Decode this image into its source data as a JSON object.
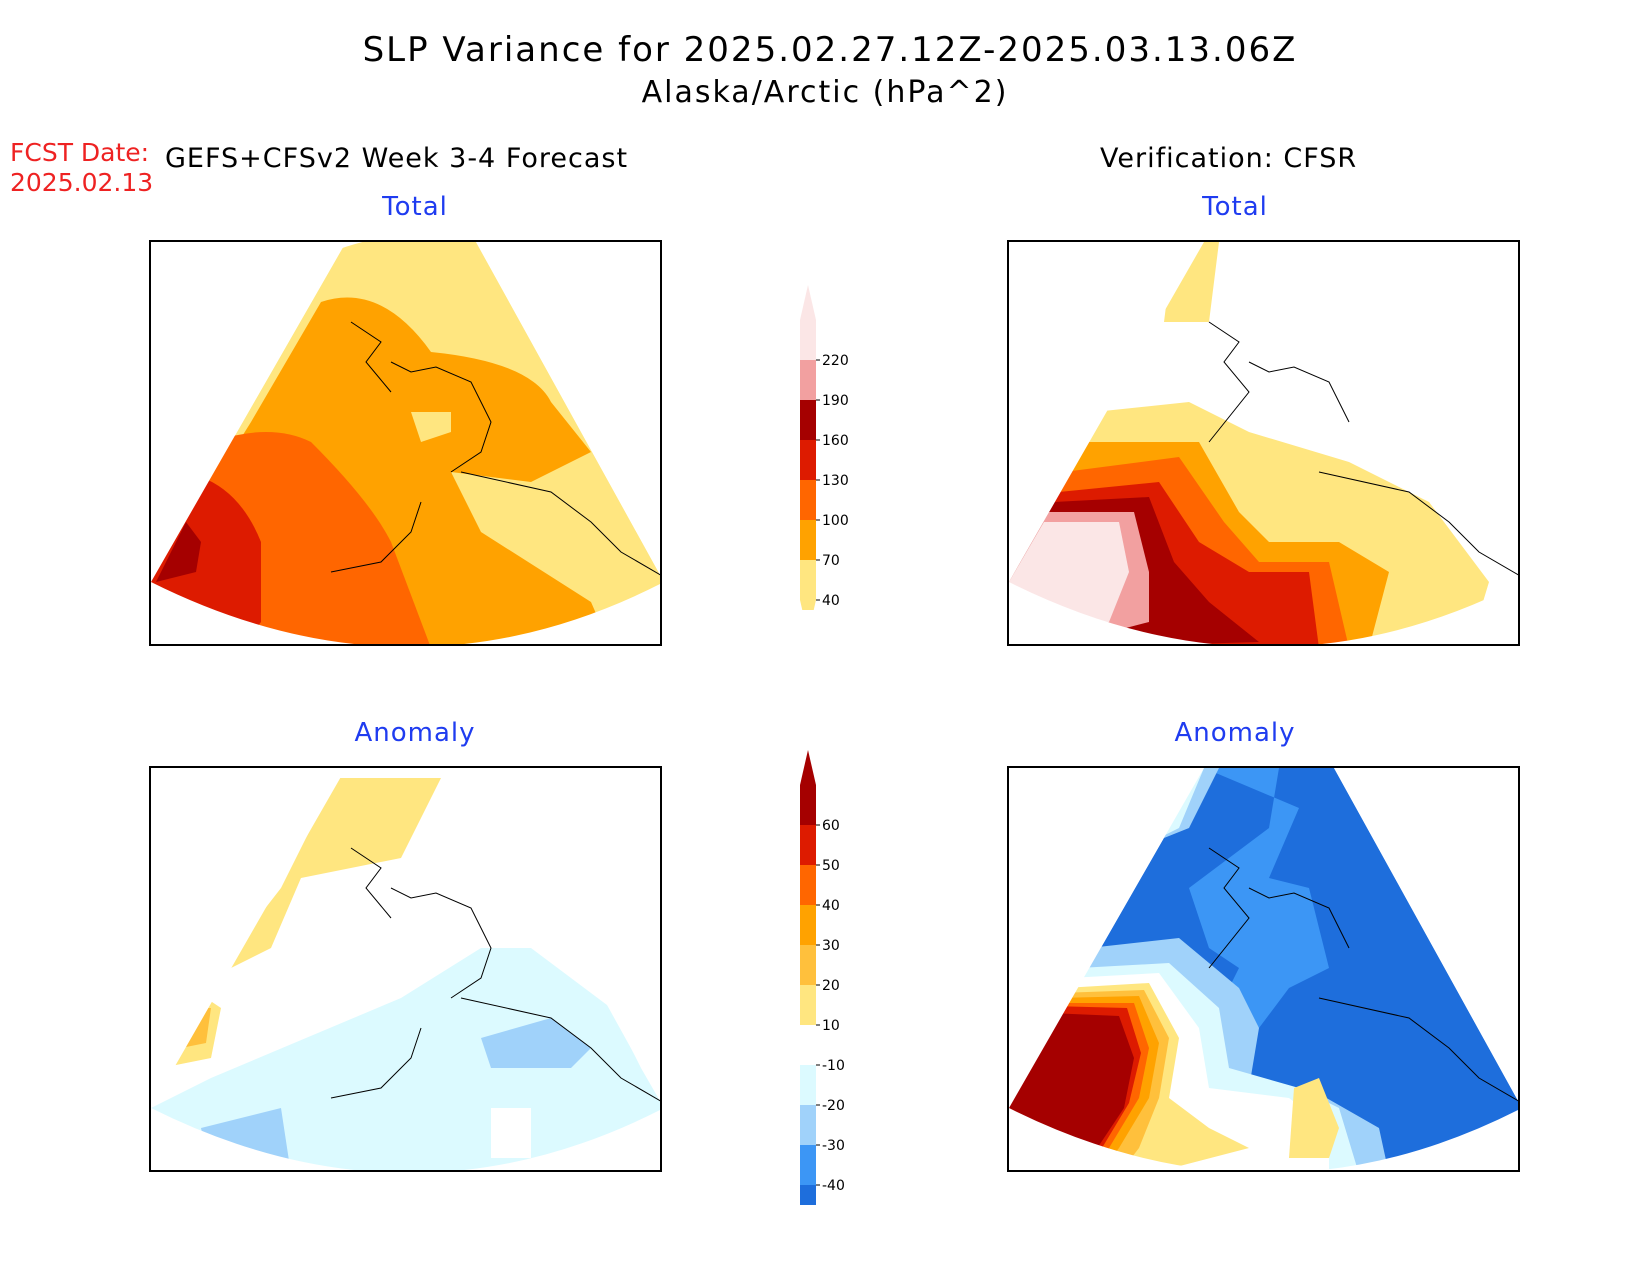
{
  "header": {
    "title": "SLP Variance for 2025.02.27.12Z-2025.03.13.06Z",
    "subtitle": "Alaska/Arctic (hPa^2)",
    "fcst_label": "FCST Date:",
    "fcst_date": "2025.02.13",
    "left_header": "GEFS+CFSv2 Week 3-4 Forecast",
    "right_header": "Verification: CFSR"
  },
  "panels": {
    "forecast_total": {
      "title": "Total"
    },
    "verification_total": {
      "title": "Total"
    },
    "forecast_anomaly": {
      "title": "Anomaly"
    },
    "verification_anomaly": {
      "title": "Anomaly"
    }
  },
  "colorbars": {
    "total": {
      "labels": [
        "220",
        "190",
        "160",
        "130",
        "100",
        "70",
        "40"
      ],
      "colors": [
        "#fbe6e6",
        "#f2a0a0",
        "#a50000",
        "#dd1b00",
        "#ff6600",
        "#ffa200",
        "#ffe680"
      ]
    },
    "anomaly": {
      "labels": [
        "60",
        "50",
        "40",
        "30",
        "20",
        "10",
        "-10",
        "-20",
        "-30",
        "-40"
      ],
      "colors": [
        "#a50000",
        "#dd1b00",
        "#ff6600",
        "#ffa200",
        "#ffc03c",
        "#ffe680",
        "#ffffff",
        "#dcfaff",
        "#a0d2fa",
        "#3c96f5",
        "#1e6edc"
      ]
    }
  },
  "colors": {
    "title_blue": "#1f3cf0",
    "fcst_red": "#ee2222"
  }
}
